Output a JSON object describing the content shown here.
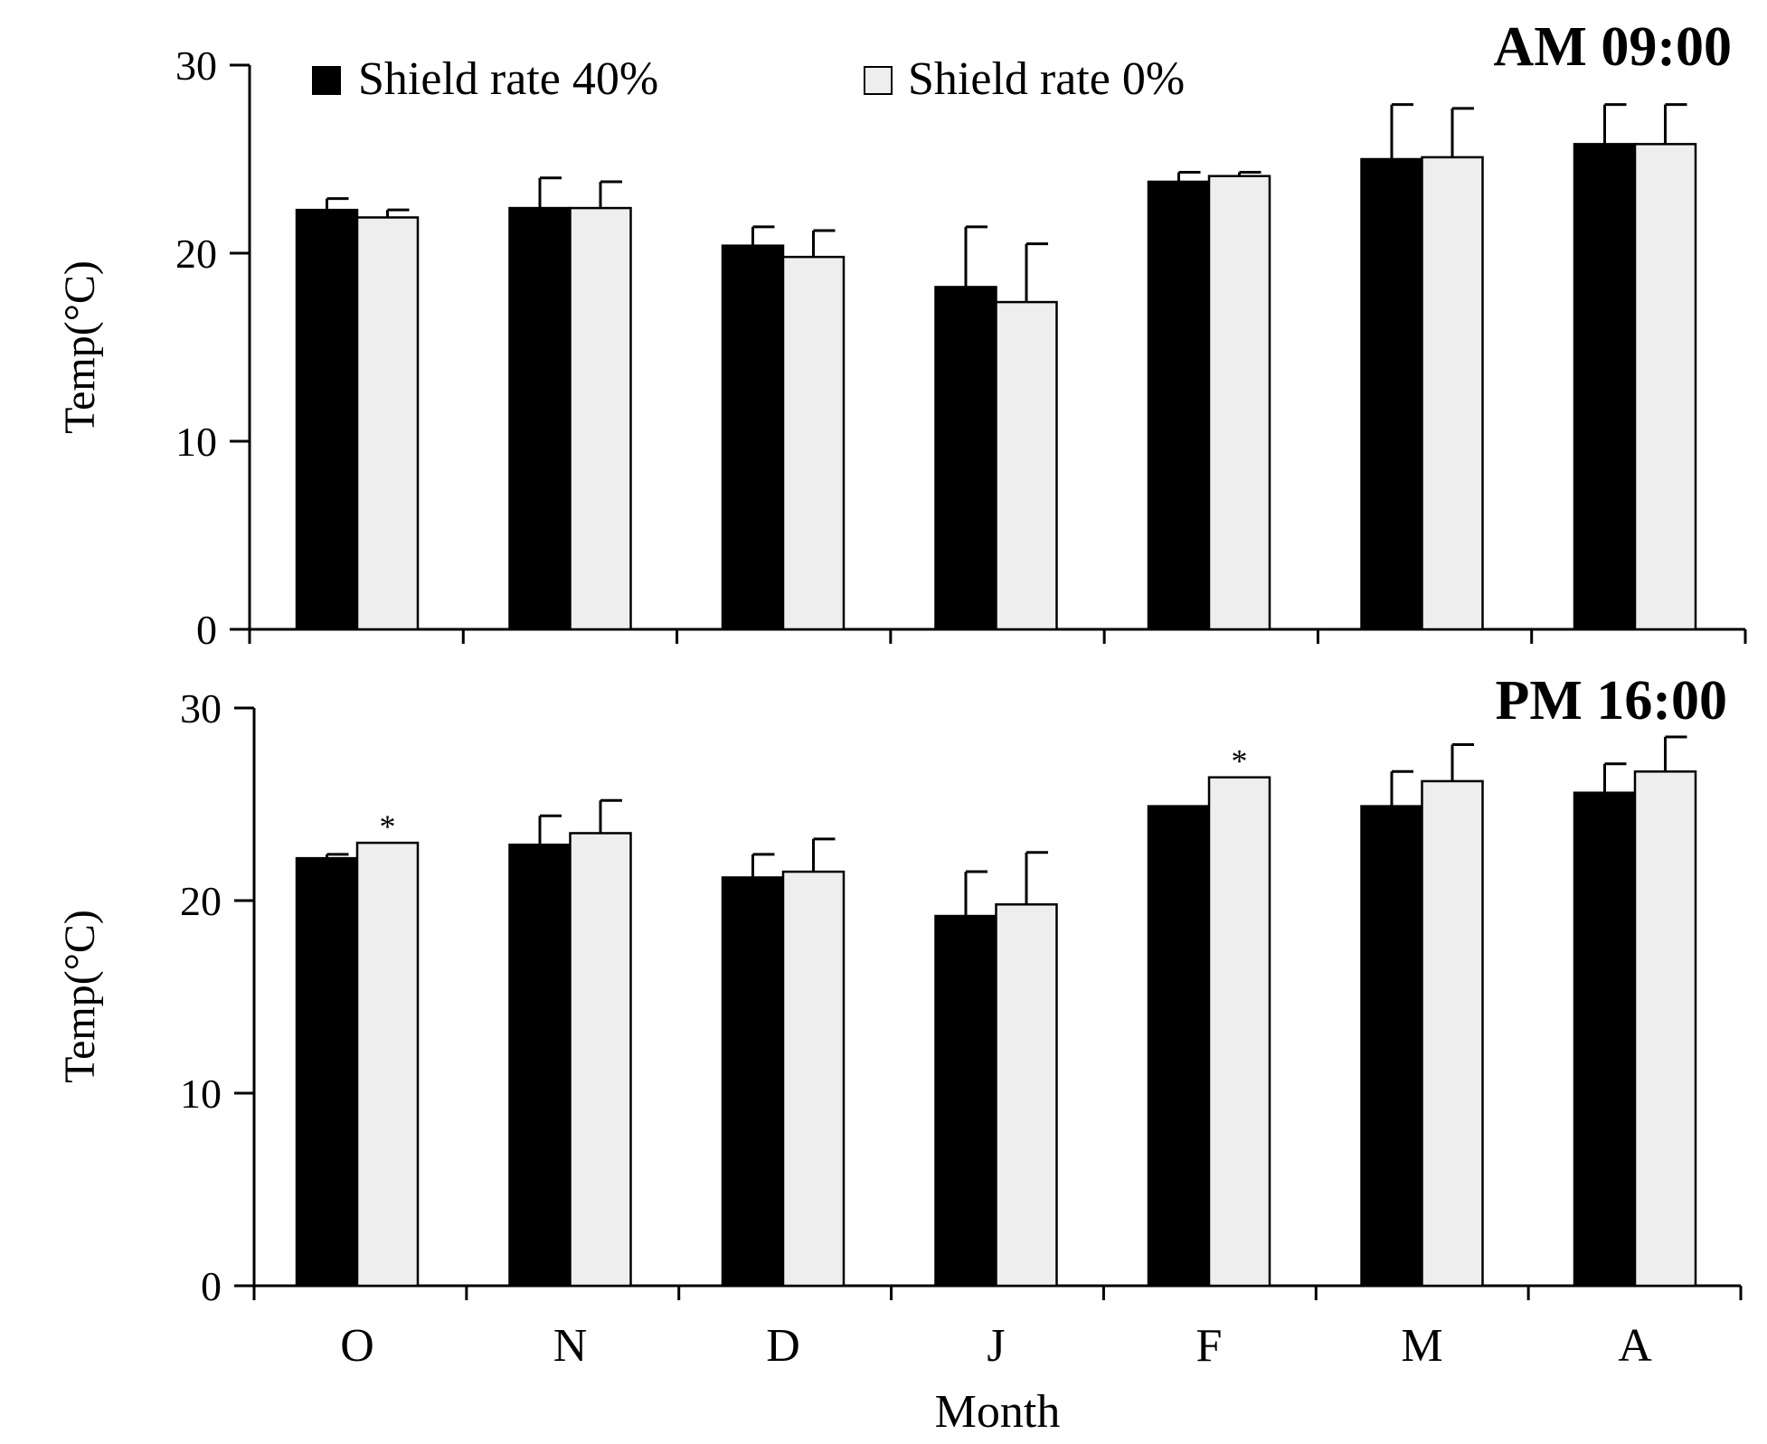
{
  "chart_data": [
    {
      "type": "bar",
      "title": "AM 09:00",
      "ylabel": "Temp(°C)",
      "xlabel": "",
      "categories": [
        "O",
        "N",
        "D",
        "J",
        "F",
        "M",
        "A"
      ],
      "ylim": [
        0,
        30
      ],
      "yticks": [
        "0",
        "10",
        "20",
        "30"
      ],
      "series": [
        {
          "name": "Shield rate 40%",
          "color": "#000000",
          "values": [
            22.3,
            22.4,
            20.4,
            18.2,
            23.8,
            25.0,
            25.8
          ],
          "errors": [
            0.6,
            1.6,
            1.0,
            3.2,
            0.5,
            2.9,
            2.1
          ]
        },
        {
          "name": "Shield rate 0%",
          "color": "#eeeeee",
          "values": [
            21.9,
            22.4,
            19.8,
            17.4,
            24.1,
            25.1,
            25.8
          ],
          "errors": [
            0.4,
            1.4,
            1.4,
            3.1,
            0.2,
            2.6,
            2.1
          ]
        }
      ],
      "annotations": []
    },
    {
      "type": "bar",
      "title": "PM 16:00",
      "ylabel": "Temp(°C)",
      "xlabel": "Month",
      "categories": [
        "O",
        "N",
        "D",
        "J",
        "F",
        "M",
        "A"
      ],
      "ylim": [
        0,
        30
      ],
      "yticks": [
        "0",
        "10",
        "20",
        "30"
      ],
      "series": [
        {
          "name": "Shield rate 40%",
          "color": "#000000",
          "values": [
            22.2,
            22.9,
            21.2,
            19.2,
            24.9,
            24.9,
            25.6
          ],
          "errors": [
            0.2,
            1.5,
            1.2,
            2.3,
            0.0,
            1.8,
            1.5
          ]
        },
        {
          "name": "Shield rate 0%",
          "color": "#eeeeee",
          "values": [
            23.0,
            23.5,
            21.5,
            19.8,
            26.4,
            26.2,
            26.7
          ],
          "errors": [
            0.0,
            1.7,
            1.7,
            2.7,
            0.0,
            1.9,
            1.8
          ]
        }
      ],
      "annotations": [
        {
          "text": "*",
          "category": "O",
          "series": 1
        },
        {
          "text": "*",
          "category": "F",
          "series": 1
        }
      ]
    }
  ],
  "legend": {
    "items": [
      {
        "label": "Shield rate 40%",
        "color": "#000000"
      },
      {
        "label": "Shield rate 0%",
        "color": "#eeeeee"
      }
    ]
  }
}
